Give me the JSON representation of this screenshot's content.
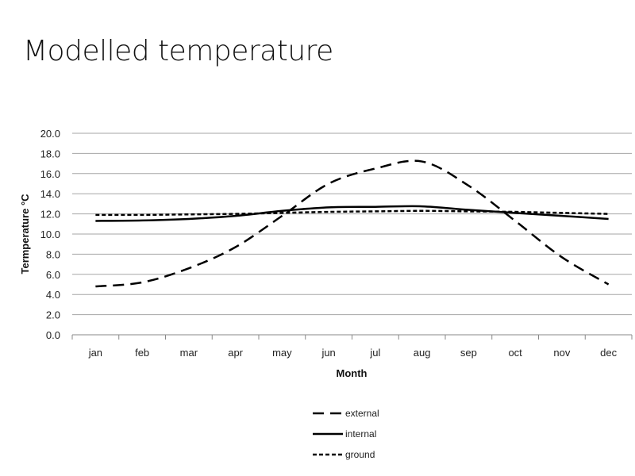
{
  "chart_data": {
    "type": "line",
    "title": "Modelled temperature",
    "xlabel": "Month",
    "ylabel": "Termperature °C",
    "ylim": [
      0,
      20
    ],
    "yticks": [
      "0.0",
      "2.0",
      "4.0",
      "6.0",
      "8.0",
      "10.0",
      "12.0",
      "14.0",
      "16.0",
      "18.0",
      "20.0"
    ],
    "categories": [
      "jan",
      "feb",
      "mar",
      "apr",
      "may",
      "jun",
      "jul",
      "aug",
      "sep",
      "oct",
      "nov",
      "dec"
    ],
    "grid": true,
    "legend_position": "bottom",
    "series": [
      {
        "name": "external",
        "style": "long-dash",
        "values": [
          4.8,
          5.2,
          6.6,
          8.7,
          11.8,
          15.0,
          16.5,
          17.2,
          14.8,
          11.3,
          7.7,
          5.0
        ]
      },
      {
        "name": "internal",
        "style": "solid",
        "values": [
          11.3,
          11.35,
          11.5,
          11.8,
          12.3,
          12.65,
          12.7,
          12.75,
          12.4,
          12.1,
          11.8,
          11.5
        ]
      },
      {
        "name": "ground",
        "style": "short-dash",
        "values": [
          11.9,
          11.9,
          11.95,
          12.0,
          12.1,
          12.2,
          12.25,
          12.3,
          12.25,
          12.2,
          12.1,
          12.0
        ]
      }
    ],
    "line_color": "#000000",
    "grid_color": "#a6a6a6"
  }
}
